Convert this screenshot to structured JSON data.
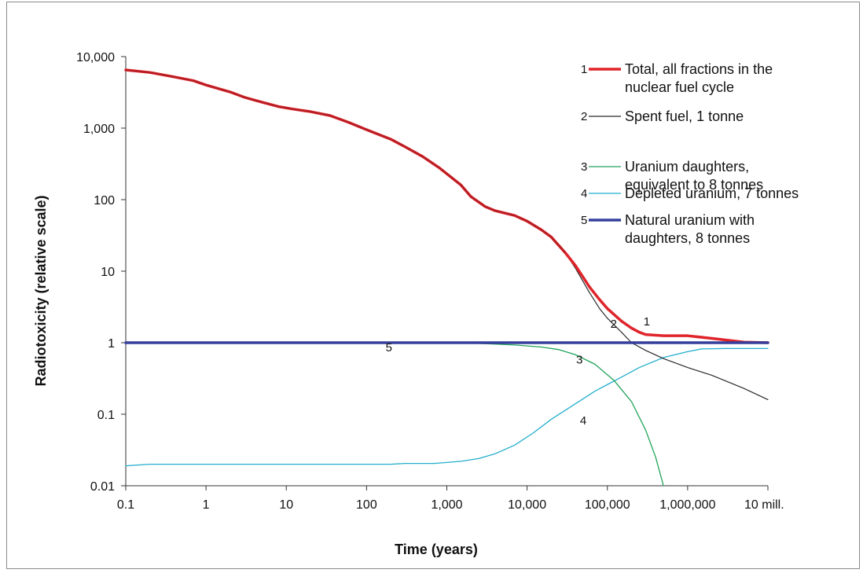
{
  "chart_data": {
    "type": "line",
    "xlabel": "Time (years)",
    "ylabel": "Radiotoxicity (relative scale)",
    "x_scale": "log",
    "y_scale": "log",
    "xlim": [
      0.1,
      10000000
    ],
    "ylim": [
      0.01,
      10000
    ],
    "grid": false,
    "legend_position": "top-right",
    "x_ticks": [
      {
        "value": 0.1,
        "label": "0.1"
      },
      {
        "value": 1,
        "label": "1"
      },
      {
        "value": 10,
        "label": "10"
      },
      {
        "value": 100,
        "label": "100"
      },
      {
        "value": 1000,
        "label": "1,000"
      },
      {
        "value": 10000,
        "label": "10,000"
      },
      {
        "value": 100000,
        "label": "100,000"
      },
      {
        "value": 1000000,
        "label": "1,000,000"
      },
      {
        "value": 10000000,
        "label": "10 mill."
      }
    ],
    "y_ticks": [
      {
        "value": 0.01,
        "label": "0.01"
      },
      {
        "value": 0.1,
        "label": "0.1"
      },
      {
        "value": 1,
        "label": "1"
      },
      {
        "value": 10,
        "label": "10"
      },
      {
        "value": 100,
        "label": "100"
      },
      {
        "value": 1000,
        "label": "1,000"
      },
      {
        "value": 10000,
        "label": "10,000"
      }
    ],
    "series": [
      {
        "id": "1",
        "number": "1",
        "legend_lines": [
          "Total, all fractions in the",
          "nuclear fuel cycle"
        ],
        "color": "#e0242a",
        "width": 3.5,
        "points": [
          [
            0.1,
            6500
          ],
          [
            0.2,
            6000
          ],
          [
            0.4,
            5200
          ],
          [
            0.7,
            4600
          ],
          [
            1,
            4000
          ],
          [
            2,
            3200
          ],
          [
            3,
            2700
          ],
          [
            5,
            2300
          ],
          [
            8,
            2000
          ],
          [
            12,
            1850
          ],
          [
            20,
            1700
          ],
          [
            35,
            1500
          ],
          [
            60,
            1200
          ],
          [
            100,
            950
          ],
          [
            200,
            700
          ],
          [
            300,
            550
          ],
          [
            500,
            400
          ],
          [
            800,
            280
          ],
          [
            1000,
            230
          ],
          [
            1500,
            160
          ],
          [
            2000,
            110
          ],
          [
            3000,
            80
          ],
          [
            4000,
            70
          ],
          [
            7000,
            60
          ],
          [
            10000,
            50
          ],
          [
            15000,
            38
          ],
          [
            20000,
            30
          ],
          [
            30000,
            18
          ],
          [
            40000,
            12
          ],
          [
            60000,
            6
          ],
          [
            80000,
            4
          ],
          [
            100000,
            3
          ],
          [
            150000,
            2
          ],
          [
            200000,
            1.6
          ],
          [
            250000,
            1.4
          ],
          [
            300000,
            1.3
          ],
          [
            500000,
            1.25
          ],
          [
            1000000,
            1.25
          ],
          [
            2000000,
            1.15
          ],
          [
            5000000,
            1.02
          ],
          [
            10000000,
            1
          ]
        ]
      },
      {
        "id": "2",
        "number": "2",
        "legend_lines": [
          "Spent fuel, 1 tonne"
        ],
        "color": "#2a2a2a",
        "width": 1.2,
        "points": [
          [
            0.1,
            6500
          ],
          [
            0.2,
            6000
          ],
          [
            0.4,
            5200
          ],
          [
            0.7,
            4600
          ],
          [
            1,
            4000
          ],
          [
            2,
            3200
          ],
          [
            3,
            2700
          ],
          [
            5,
            2300
          ],
          [
            8,
            2000
          ],
          [
            12,
            1850
          ],
          [
            20,
            1700
          ],
          [
            35,
            1500
          ],
          [
            60,
            1200
          ],
          [
            100,
            950
          ],
          [
            200,
            700
          ],
          [
            300,
            550
          ],
          [
            500,
            400
          ],
          [
            800,
            280
          ],
          [
            1000,
            230
          ],
          [
            1500,
            160
          ],
          [
            2000,
            110
          ],
          [
            3000,
            80
          ],
          [
            4000,
            70
          ],
          [
            7000,
            60
          ],
          [
            10000,
            50
          ],
          [
            15000,
            38
          ],
          [
            20000,
            30
          ],
          [
            30000,
            18
          ],
          [
            40000,
            11
          ],
          [
            60000,
            5
          ],
          [
            80000,
            3
          ],
          [
            100000,
            2.2
          ],
          [
            150000,
            1.4
          ],
          [
            200000,
            1
          ],
          [
            300000,
            0.78
          ],
          [
            500000,
            0.6
          ],
          [
            1000000,
            0.45
          ],
          [
            2000000,
            0.35
          ],
          [
            5000000,
            0.23
          ],
          [
            10000000,
            0.16
          ]
        ]
      },
      {
        "id": "3",
        "number": "3",
        "legend_lines": [
          "Uranium daughters,",
          "equivalent to 8 tonnes"
        ],
        "color": "#1fa35a",
        "width": 1.3,
        "points": [
          [
            1500,
            1
          ],
          [
            3000,
            0.97
          ],
          [
            7000,
            0.93
          ],
          [
            15000,
            0.87
          ],
          [
            25000,
            0.8
          ],
          [
            40000,
            0.68
          ],
          [
            70000,
            0.5
          ],
          [
            120000,
            0.3
          ],
          [
            200000,
            0.15
          ],
          [
            300000,
            0.06
          ],
          [
            400000,
            0.025
          ],
          [
            500000,
            0.01
          ]
        ]
      },
      {
        "id": "4",
        "number": "4",
        "legend_lines": [
          "Depleted uranium, 7 tonnes"
        ],
        "color": "#22aecd",
        "width": 1.3,
        "points": [
          [
            0.1,
            0.019
          ],
          [
            0.2,
            0.02
          ],
          [
            1,
            0.02
          ],
          [
            10,
            0.02
          ],
          [
            100,
            0.02
          ],
          [
            200,
            0.02
          ],
          [
            300,
            0.0205
          ],
          [
            700,
            0.0205
          ],
          [
            1500,
            0.022
          ],
          [
            2500,
            0.024
          ],
          [
            4000,
            0.028
          ],
          [
            7000,
            0.037
          ],
          [
            12000,
            0.055
          ],
          [
            20000,
            0.085
          ],
          [
            40000,
            0.14
          ],
          [
            70000,
            0.21
          ],
          [
            100000,
            0.26
          ],
          [
            150000,
            0.33
          ],
          [
            250000,
            0.45
          ],
          [
            500000,
            0.62
          ],
          [
            1000000,
            0.75
          ],
          [
            1500000,
            0.82
          ],
          [
            3000000,
            0.83
          ],
          [
            10000000,
            0.83
          ]
        ]
      },
      {
        "id": "5",
        "number": "5",
        "legend_lines": [
          "Natural uranium with",
          "daughters, 8 tonnes"
        ],
        "color": "#343f9b",
        "width": 3.5,
        "points": [
          [
            0.1,
            1
          ],
          [
            10000000,
            1
          ]
        ]
      }
    ],
    "curve_labels": [
      {
        "text": "1",
        "x": 310000,
        "y": 1.75
      },
      {
        "text": "2",
        "x": 120000,
        "y": 1.62
      },
      {
        "text": "3",
        "x": 45000,
        "y": 0.51
      },
      {
        "text": "4",
        "x": 50000,
        "y": 0.072
      },
      {
        "text": "5",
        "x": 190,
        "y": 0.76
      }
    ]
  }
}
